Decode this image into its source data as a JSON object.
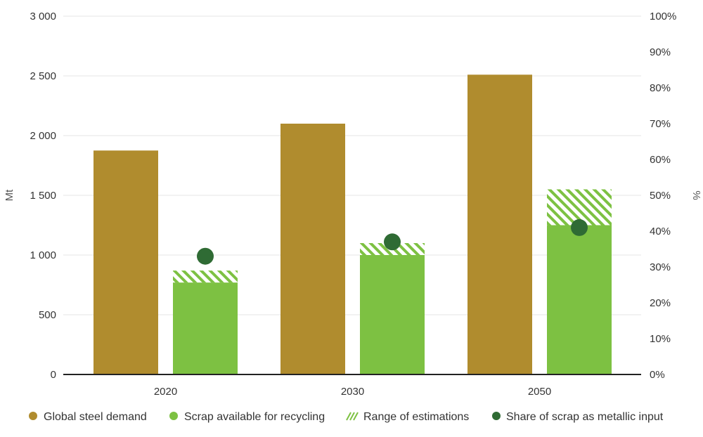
{
  "chart_data": {
    "type": "bar",
    "categories": [
      "2020",
      "2030",
      "2050"
    ],
    "series": [
      {
        "name": "Global steel demand",
        "axis": "left",
        "values": [
          1875,
          2100,
          2510
        ]
      },
      {
        "name": "Scrap available for recycling",
        "axis": "left",
        "values": [
          770,
          1000,
          1250
        ]
      },
      {
        "name": "Range of estimations",
        "axis": "left",
        "type": "range",
        "values": [
          [
            770,
            870
          ],
          [
            1000,
            1100
          ],
          [
            1250,
            1550
          ]
        ]
      },
      {
        "name": "Share of scrap as metallic input",
        "axis": "right",
        "type": "scatter",
        "values": [
          33,
          37,
          41
        ]
      }
    ],
    "ylabel": "Mt",
    "y2label": "%",
    "ylim": [
      0,
      3000
    ],
    "y2lim": [
      0,
      100
    ],
    "yticks": [
      0,
      500,
      1000,
      1500,
      2000,
      2500,
      3000
    ],
    "yticklabels": [
      "0",
      "500",
      "1 000",
      "1 500",
      "2 000",
      "2 500",
      "3 000"
    ],
    "y2ticks": [
      0,
      10,
      20,
      30,
      40,
      50,
      60,
      70,
      80,
      90,
      100
    ],
    "y2ticklabels": [
      "0%",
      "10%",
      "20%",
      "30%",
      "40%",
      "50%",
      "60%",
      "70%",
      "80%",
      "90%",
      "100%"
    ],
    "grid": true,
    "legend_position": "bottom",
    "colors": {
      "demand": "#b08c2e",
      "scrap": "#7dc142",
      "hatch": "#7dc142",
      "share": "#2f6b34",
      "grid": "#e6e6e6",
      "axis": "#222222"
    }
  }
}
